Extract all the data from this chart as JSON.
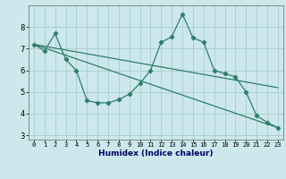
{
  "xlabel": "Humidex (Indice chaleur)",
  "ylabel": "",
  "bg_color": "#cce8ec",
  "grid_color": "#aacccc",
  "line_color": "#2e7d6e",
  "xlim": [
    -0.5,
    23.5
  ],
  "ylim": [
    2.8,
    9.0
  ],
  "yticks": [
    3,
    4,
    5,
    6,
    7,
    8
  ],
  "xticks": [
    0,
    1,
    2,
    3,
    4,
    5,
    6,
    7,
    8,
    9,
    10,
    11,
    12,
    13,
    14,
    15,
    16,
    17,
    18,
    19,
    20,
    21,
    22,
    23
  ],
  "curve1_x": [
    0,
    1,
    2,
    3,
    4,
    5,
    6,
    7,
    8,
    9,
    10,
    11,
    12,
    13,
    14,
    15,
    16,
    17,
    18,
    19,
    20,
    21,
    22,
    23
  ],
  "curve1_y": [
    7.2,
    6.9,
    7.7,
    6.5,
    6.0,
    4.6,
    4.5,
    4.5,
    4.65,
    4.9,
    5.4,
    6.0,
    7.3,
    7.55,
    8.6,
    7.5,
    7.3,
    6.0,
    5.85,
    5.7,
    5.0,
    3.9,
    3.6,
    3.35
  ],
  "trend1_x": [
    0,
    23
  ],
  "trend1_y": [
    7.2,
    5.2
  ],
  "trend2_x": [
    0,
    23
  ],
  "trend2_y": [
    7.2,
    3.35
  ]
}
